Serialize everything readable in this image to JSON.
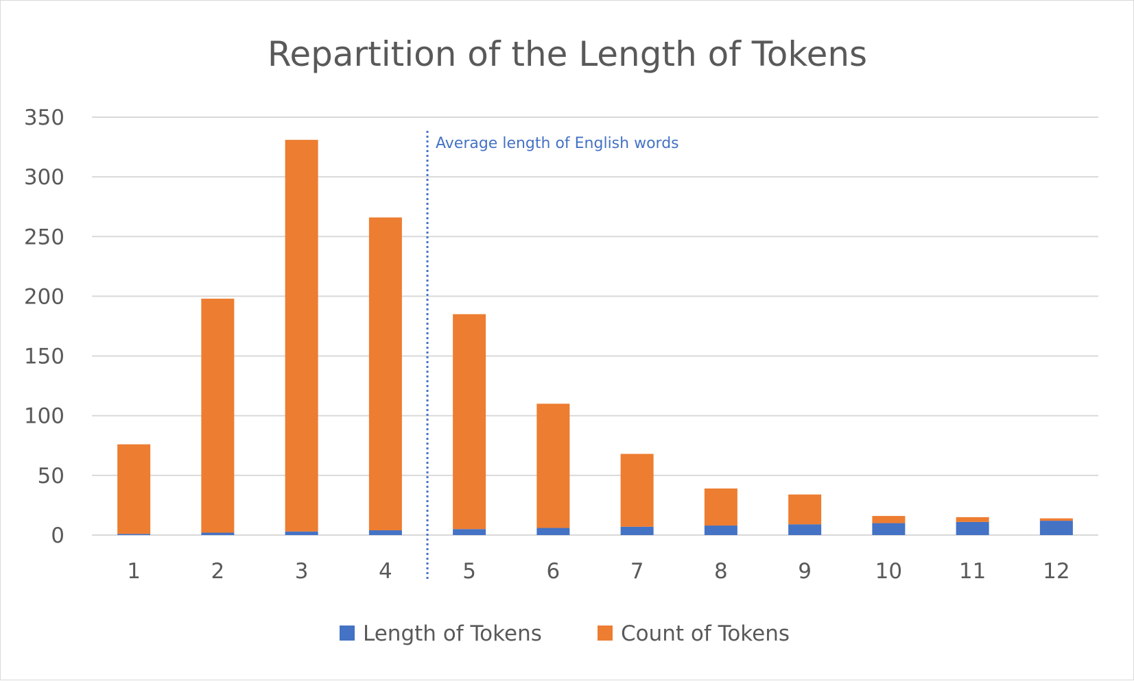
{
  "chart_data": {
    "type": "bar",
    "stacked": true,
    "title": "Repartition of the Length of Tokens",
    "xlabel": "",
    "ylabel": "",
    "categories": [
      "1",
      "2",
      "3",
      "4",
      "5",
      "6",
      "7",
      "8",
      "9",
      "10",
      "11",
      "12"
    ],
    "series": [
      {
        "name": "Length of Tokens",
        "color": "#4472c4",
        "values": [
          1,
          2,
          3,
          4,
          5,
          6,
          7,
          8,
          9,
          10,
          11,
          12
        ]
      },
      {
        "name": "Count of Tokens",
        "color": "#ed7d31",
        "values": [
          75,
          196,
          328,
          262,
          180,
          104,
          61,
          31,
          25,
          6,
          4,
          2
        ]
      }
    ],
    "ylim": [
      0,
      350
    ],
    "yticks": [
      "0",
      "50",
      "100",
      "150",
      "200",
      "250",
      "300",
      "350"
    ],
    "grid": true,
    "legend_position": "bottom",
    "annotation": {
      "text": "Average length of English words",
      "x_between": [
        "4",
        "5"
      ],
      "color": "#4472c4"
    }
  }
}
